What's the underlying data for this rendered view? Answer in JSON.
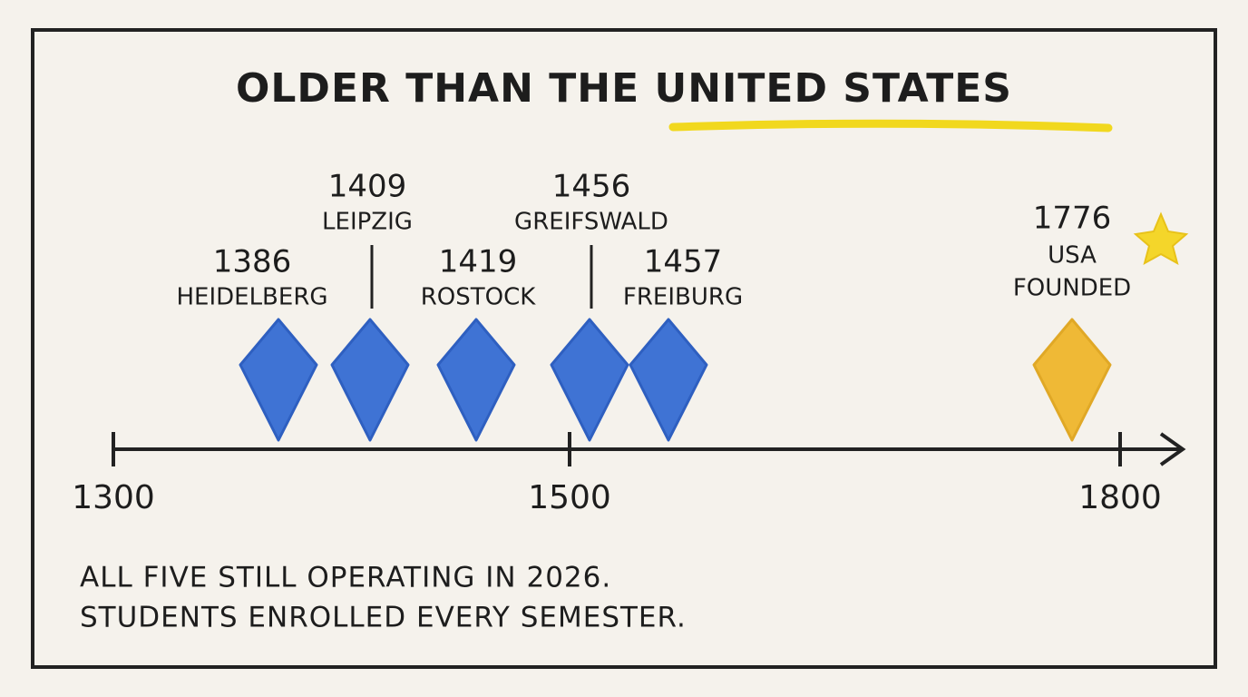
{
  "title_plain": "OLDER THAN THE",
  "title_highlight": "UNITED STATES",
  "events": [
    {
      "year": "1386",
      "name": "HEIDELBERG"
    },
    {
      "year": "1409",
      "name": "LEIPZIG"
    },
    {
      "year": "1419",
      "name": "ROSTOCK"
    },
    {
      "year": "1456",
      "name": "GREIFSWALD"
    },
    {
      "year": "1457",
      "name": "FREIBURG"
    }
  ],
  "milestone": {
    "year": "1776",
    "line1": "USA",
    "line2": "FOUNDED"
  },
  "axis_labels": [
    "1300",
    "1500",
    "1800"
  ],
  "footer": [
    "ALL FIVE STILL OPERATING IN 2026.",
    "STUDENTS ENROLLED EVERY SEMESTER."
  ]
}
